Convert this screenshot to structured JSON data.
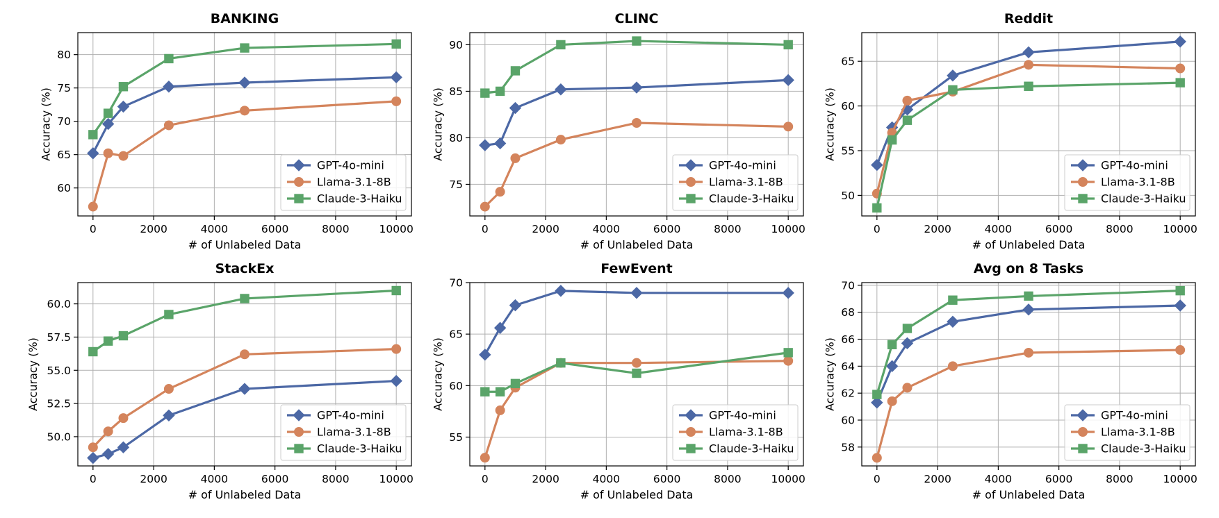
{
  "colors": {
    "GPT-4o-mini": "#4c68a5",
    "Llama-3.1-8B": "#d4845c",
    "Claude-3-Haiku": "#5aa469"
  },
  "chart_data": [
    {
      "type": "line",
      "title": "BANKING",
      "xlabel": "# of Unlabeled Data",
      "ylabel": "Accuracy (%)",
      "x": [
        0,
        500,
        1000,
        2500,
        5000,
        10000
      ],
      "xlim": [
        -500,
        10500
      ],
      "xticks": [
        0,
        2000,
        4000,
        6000,
        8000,
        10000
      ],
      "ylim": [
        55.8,
        83.3
      ],
      "yticks": [
        "60",
        "65",
        "70",
        "75",
        "80"
      ],
      "grid": true,
      "legend_position": "lower-right",
      "series": [
        {
          "name": "GPT-4o-mini",
          "marker": "diamond",
          "values": [
            65.2,
            69.6,
            72.2,
            75.2,
            75.8,
            76.6
          ]
        },
        {
          "name": "Llama-3.1-8B",
          "marker": "circle",
          "values": [
            57.2,
            65.2,
            64.8,
            69.4,
            71.6,
            73.0
          ]
        },
        {
          "name": "Claude-3-Haiku",
          "marker": "square",
          "values": [
            68.0,
            71.2,
            75.2,
            79.4,
            81.0,
            81.6
          ]
        }
      ]
    },
    {
      "type": "line",
      "title": "CLINC",
      "xlabel": "# of Unlabeled Data",
      "ylabel": "Accuracy (%)",
      "x": [
        0,
        500,
        1000,
        2500,
        5000,
        10000
      ],
      "xlim": [
        -500,
        10500
      ],
      "xticks": [
        0,
        2000,
        4000,
        6000,
        8000,
        10000
      ],
      "ylim": [
        71.6,
        91.3
      ],
      "yticks": [
        "75",
        "80",
        "85",
        "90"
      ],
      "grid": true,
      "legend_position": "lower-right",
      "series": [
        {
          "name": "GPT-4o-mini",
          "marker": "diamond",
          "values": [
            79.2,
            79.4,
            83.2,
            85.2,
            85.4,
            86.2
          ]
        },
        {
          "name": "Llama-3.1-8B",
          "marker": "circle",
          "values": [
            72.6,
            74.2,
            77.8,
            79.8,
            81.6,
            81.2
          ]
        },
        {
          "name": "Claude-3-Haiku",
          "marker": "square",
          "values": [
            84.8,
            85.0,
            87.2,
            90.0,
            90.4,
            90.0
          ]
        }
      ]
    },
    {
      "type": "line",
      "title": "Reddit",
      "xlabel": "# of Unlabeled Data",
      "ylabel": "Accuracy (%)",
      "x": [
        0,
        500,
        1000,
        2500,
        5000,
        10000
      ],
      "xlim": [
        -500,
        10500
      ],
      "xticks": [
        0,
        2000,
        4000,
        6000,
        8000,
        10000
      ],
      "ylim": [
        47.7,
        68.2
      ],
      "yticks": [
        "50",
        "55",
        "60",
        "65"
      ],
      "grid": true,
      "legend_position": "lower-right",
      "series": [
        {
          "name": "GPT-4o-mini",
          "marker": "diamond",
          "values": [
            53.4,
            57.6,
            59.6,
            63.4,
            66.0,
            67.2
          ]
        },
        {
          "name": "Llama-3.1-8B",
          "marker": "circle",
          "values": [
            50.2,
            57.0,
            60.6,
            61.6,
            64.6,
            64.2
          ]
        },
        {
          "name": "Claude-3-Haiku",
          "marker": "square",
          "values": [
            48.6,
            56.2,
            58.4,
            61.8,
            62.2,
            62.6
          ]
        }
      ]
    },
    {
      "type": "line",
      "title": "StackEx",
      "xlabel": "# of Unlabeled Data",
      "ylabel": "Accuracy (%)",
      "x": [
        0,
        500,
        1000,
        2500,
        5000,
        10000
      ],
      "xlim": [
        -500,
        10500
      ],
      "xticks": [
        0,
        2000,
        4000,
        6000,
        8000,
        10000
      ],
      "ylim": [
        47.8,
        61.6
      ],
      "yticks": [
        "50.0",
        "52.5",
        "55.0",
        "57.5",
        "60.0"
      ],
      "grid": true,
      "legend_position": "lower-right",
      "series": [
        {
          "name": "GPT-4o-mini",
          "marker": "diamond",
          "values": [
            48.4,
            48.7,
            49.2,
            51.6,
            53.6,
            54.2
          ]
        },
        {
          "name": "Llama-3.1-8B",
          "marker": "circle",
          "values": [
            49.2,
            50.4,
            51.4,
            53.6,
            56.2,
            56.6
          ]
        },
        {
          "name": "Claude-3-Haiku",
          "marker": "square",
          "values": [
            56.4,
            57.2,
            57.6,
            59.2,
            60.4,
            61.0
          ]
        }
      ]
    },
    {
      "type": "line",
      "title": "FewEvent",
      "xlabel": "# of Unlabeled Data",
      "ylabel": "Accuracy (%)",
      "x": [
        0,
        500,
        1000,
        2500,
        5000,
        10000
      ],
      "xlim": [
        -500,
        10500
      ],
      "xticks": [
        0,
        2000,
        4000,
        6000,
        8000,
        10000
      ],
      "ylim": [
        52.2,
        70.0
      ],
      "yticks": [
        "55",
        "60",
        "65",
        "70"
      ],
      "grid": true,
      "legend_position": "lower-right",
      "series": [
        {
          "name": "GPT-4o-mini",
          "marker": "diamond",
          "values": [
            63.0,
            65.6,
            67.8,
            69.2,
            69.0,
            69.0
          ]
        },
        {
          "name": "Llama-3.1-8B",
          "marker": "circle",
          "values": [
            53.0,
            57.6,
            59.8,
            62.2,
            62.2,
            62.4
          ]
        },
        {
          "name": "Claude-3-Haiku",
          "marker": "square",
          "values": [
            59.4,
            59.4,
            60.2,
            62.2,
            61.2,
            63.2
          ]
        }
      ]
    },
    {
      "type": "line",
      "title": "Avg on 8 Tasks",
      "xlabel": "# of Unlabeled Data",
      "ylabel": "Accuracy (%)",
      "x": [
        0,
        500,
        1000,
        2500,
        5000,
        10000
      ],
      "xlim": [
        -500,
        10500
      ],
      "xticks": [
        0,
        2000,
        4000,
        6000,
        8000,
        10000
      ],
      "ylim": [
        56.6,
        70.2
      ],
      "yticks": [
        "58",
        "60",
        "62",
        "64",
        "66",
        "68",
        "70"
      ],
      "grid": true,
      "legend_position": "lower-right",
      "series": [
        {
          "name": "GPT-4o-mini",
          "marker": "diamond",
          "values": [
            61.3,
            64.0,
            65.7,
            67.3,
            68.2,
            68.5
          ]
        },
        {
          "name": "Llama-3.1-8B",
          "marker": "circle",
          "values": [
            57.2,
            61.4,
            62.4,
            64.0,
            65.0,
            65.2
          ]
        },
        {
          "name": "Claude-3-Haiku",
          "marker": "square",
          "values": [
            61.9,
            65.6,
            66.8,
            68.9,
            69.2,
            69.6
          ]
        }
      ]
    }
  ]
}
